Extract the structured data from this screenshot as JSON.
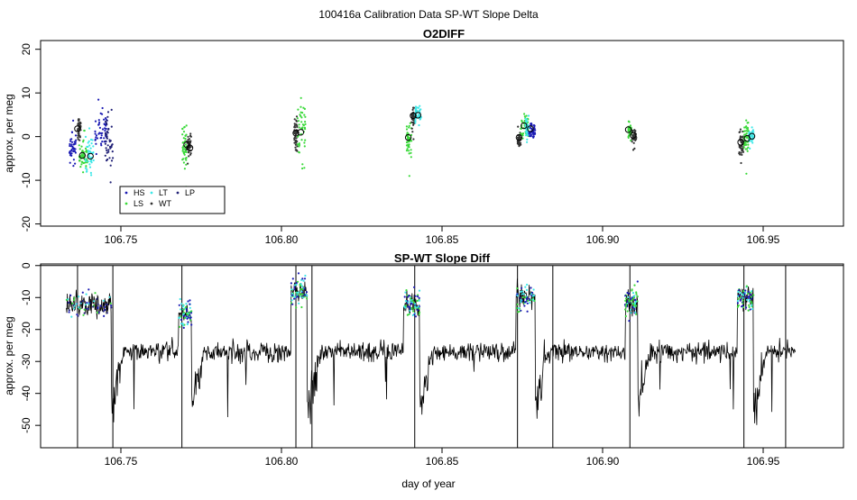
{
  "page_title": "100416a   Calibration Data SP-WT Slope Delta",
  "chart_data": [
    {
      "type": "scatter",
      "title": "O2DIFF",
      "xlabel": "",
      "ylabel": "approx. per meg",
      "xlim": [
        106.725,
        106.975
      ],
      "ylim": [
        -20.5,
        22
      ],
      "x_ticks": [
        106.75,
        106.8,
        106.85,
        106.9,
        106.95
      ],
      "x_tick_labels": [
        "106.75",
        "106.80",
        "106.85",
        "106.90",
        "106.95"
      ],
      "y_ticks": [
        -20,
        -10,
        0,
        10,
        20
      ],
      "y_tick_labels": [
        "-20",
        "-10",
        "0",
        "10",
        "20"
      ],
      "grid": false,
      "legend_position": "bottom-left",
      "legend": [
        {
          "name": "HS",
          "color": "#1c1cb4"
        },
        {
          "name": "LT",
          "color": "#3ee8e8"
        },
        {
          "name": "LP",
          "color": "#222277"
        },
        {
          "name": "LS",
          "color": "#3ad93a"
        },
        {
          "name": "WT",
          "color": "#333333"
        }
      ],
      "clusters": [
        {
          "series": "HS",
          "x": [
            106.734,
            106.736
          ],
          "center": -2.5,
          "spread": 3
        },
        {
          "series": "WT",
          "x": [
            106.7365,
            106.7375
          ],
          "center": 2,
          "spread": 2
        },
        {
          "series": "LS",
          "x": [
            106.737,
            106.7395
          ],
          "center": -4.5,
          "spread": 3
        },
        {
          "series": "LT",
          "x": [
            106.739,
            106.7415
          ],
          "center": -4.5,
          "spread": 3.5
        },
        {
          "series": "HS",
          "x": [
            106.742,
            106.7455
          ],
          "center": 1,
          "spread": 4
        },
        {
          "series": "LP",
          "x": [
            106.745,
            106.7475
          ],
          "center": -1,
          "spread": 5
        },
        {
          "series": "LS",
          "x": [
            106.769,
            106.7705
          ],
          "center": -2,
          "spread": 4
        },
        {
          "series": "WT",
          "x": [
            106.7705,
            106.772
          ],
          "center": -2.5,
          "spread": 2
        },
        {
          "series": "WT",
          "x": [
            106.804,
            106.805
          ],
          "center": 0.5,
          "spread": 3
        },
        {
          "series": "LS",
          "x": [
            106.805,
            106.8075
          ],
          "center": 1.5,
          "spread": 6
        },
        {
          "series": "LS",
          "x": [
            106.839,
            106.8405
          ],
          "center": -1,
          "spread": 3
        },
        {
          "series": "WT",
          "x": [
            106.8405,
            106.8415
          ],
          "center": 4.5,
          "spread": 2
        },
        {
          "series": "LT",
          "x": [
            106.8415,
            106.8435
          ],
          "center": 5,
          "spread": 1.5
        },
        {
          "series": "WT",
          "x": [
            106.8735,
            106.8745
          ],
          "center": -1,
          "spread": 1.5
        },
        {
          "series": "LS",
          "x": [
            106.8745,
            106.877
          ],
          "center": 2.5,
          "spread": 2
        },
        {
          "series": "LT",
          "x": [
            106.876,
            106.877
          ],
          "center": 2,
          "spread": 1.5
        },
        {
          "series": "HS",
          "x": [
            106.877,
            106.879
          ],
          "center": 1.5,
          "spread": 1.5
        },
        {
          "series": "LS",
          "x": [
            106.908,
            106.909
          ],
          "center": 1.5,
          "spread": 1.5
        },
        {
          "series": "WT",
          "x": [
            106.909,
            106.9105
          ],
          "center": 0,
          "spread": 1.2
        },
        {
          "series": "WT",
          "x": [
            106.9425,
            106.944
          ],
          "center": -1.5,
          "spread": 2
        },
        {
          "series": "LS",
          "x": [
            106.944,
            106.9455
          ],
          "center": -0.5,
          "spread": 3
        },
        {
          "series": "LT",
          "x": [
            106.9455,
            106.947
          ],
          "center": 0,
          "spread": 1.5
        }
      ],
      "cluster_means": [
        {
          "x": 106.7365,
          "y": 1.8
        },
        {
          "x": 106.738,
          "y": -4.3
        },
        {
          "x": 106.7405,
          "y": -4.5
        },
        {
          "x": 106.7705,
          "y": -1.9
        },
        {
          "x": 106.7715,
          "y": -2.6
        },
        {
          "x": 106.8045,
          "y": 0.8
        },
        {
          "x": 106.806,
          "y": 1.0
        },
        {
          "x": 106.8395,
          "y": -0.2
        },
        {
          "x": 106.841,
          "y": 4.8
        },
        {
          "x": 106.8425,
          "y": 4.9
        },
        {
          "x": 106.874,
          "y": -0.2
        },
        {
          "x": 106.8755,
          "y": 2.5
        },
        {
          "x": 106.8775,
          "y": 1.8
        },
        {
          "x": 106.908,
          "y": 1.6
        },
        {
          "x": 106.9095,
          "y": 0.3
        },
        {
          "x": 106.943,
          "y": -1.3
        },
        {
          "x": 106.945,
          "y": -0.4
        },
        {
          "x": 106.9465,
          "y": 0.1
        }
      ]
    },
    {
      "type": "line",
      "title": "SP-WT Slope Diff",
      "xlabel": "day of year",
      "ylabel": "approx. per meg",
      "xlim": [
        106.725,
        106.975
      ],
      "ylim": [
        -57,
        0.5
      ],
      "x_ticks": [
        106.75,
        106.8,
        106.85,
        106.9,
        106.95
      ],
      "x_tick_labels": [
        "106.75",
        "106.80",
        "106.85",
        "106.90",
        "106.95"
      ],
      "y_ticks": [
        -50,
        -40,
        -30,
        -20,
        -10,
        0
      ],
      "y_tick_labels": [
        "-50",
        "-40",
        "-30",
        "-20",
        "-10",
        "0"
      ],
      "reference_line": 0,
      "grid": false,
      "x_range": [
        106.733,
        106.96
      ],
      "baseline": -27,
      "noise": 2.5,
      "calibration_windows": [
        {
          "x": [
            106.733,
            106.747
          ],
          "level": -12
        },
        {
          "x": [
            106.768,
            106.772
          ],
          "level": -15
        },
        {
          "x": [
            106.803,
            106.808
          ],
          "level": -8
        },
        {
          "x": [
            106.838,
            106.843
          ],
          "level": -12
        },
        {
          "x": [
            106.873,
            106.879
          ],
          "level": -10
        },
        {
          "x": [
            106.907,
            106.911
          ],
          "level": -12
        },
        {
          "x": [
            106.942,
            106.947
          ],
          "level": -10
        }
      ],
      "drop_lines": [
        {
          "x": 106.7365,
          "y": -57
        },
        {
          "x": 106.7475,
          "y": -57
        },
        {
          "x": 106.769,
          "y": -57
        },
        {
          "x": 106.8045,
          "y": -57
        },
        {
          "x": 106.8095,
          "y": -57
        },
        {
          "x": 106.8415,
          "y": -57
        },
        {
          "x": 106.8735,
          "y": -57
        },
        {
          "x": 106.8845,
          "y": -57
        },
        {
          "x": 106.9085,
          "y": -57
        },
        {
          "x": 106.944,
          "y": -57
        },
        {
          "x": 106.957,
          "y": -57
        }
      ]
    }
  ]
}
